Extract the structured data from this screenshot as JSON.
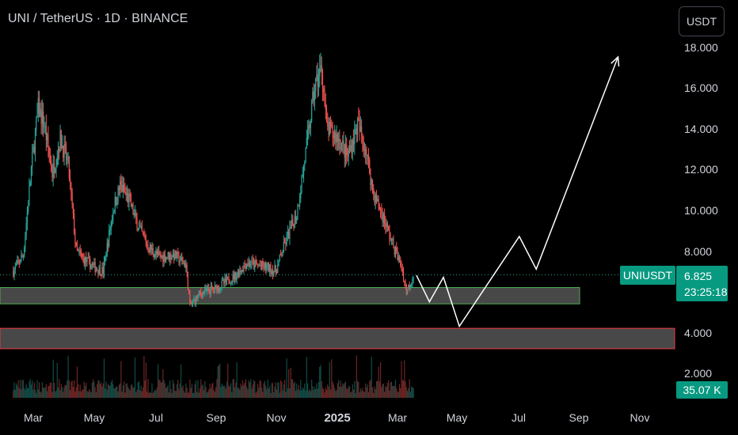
{
  "header": {
    "title": "UNI / TetherUS · 1D · BINANCE",
    "currency_button": "USDT"
  },
  "badges": {
    "symbol": "UNIUSDT",
    "last_price": "6.825",
    "countdown": "23:25:18",
    "volume": "35.07 K"
  },
  "colors": {
    "up": "#26a69a",
    "down": "#ef5350",
    "zone_fill": "#505050",
    "zone_green_border": "#4caf50",
    "zone_red_border": "#f23645",
    "projection": "#ffffff",
    "badge": "#089981"
  },
  "chart_data": {
    "type": "candlestick",
    "y_axis": {
      "ticks": [
        "18.000",
        "16.000",
        "14.000",
        "12.000",
        "10.000",
        "8.000",
        "4.000",
        "2.000"
      ],
      "range": [
        1.0,
        19.5
      ]
    },
    "x_axis": {
      "ticks": [
        "Mar",
        "May",
        "Jul",
        "Sep",
        "Nov",
        "2025",
        "Mar",
        "May",
        "Jul",
        "Sep",
        "Nov"
      ]
    },
    "last_price": 6.825,
    "price_path": [
      {
        "date": "2024-02-10",
        "price": 7.0
      },
      {
        "date": "2024-02-20",
        "price": 7.8
      },
      {
        "date": "2024-02-28",
        "price": 12.0
      },
      {
        "date": "2024-03-06",
        "price": 15.0
      },
      {
        "date": "2024-03-12",
        "price": 14.2
      },
      {
        "date": "2024-03-20",
        "price": 11.8
      },
      {
        "date": "2024-03-28",
        "price": 13.5
      },
      {
        "date": "2024-04-05",
        "price": 12.2
      },
      {
        "date": "2024-04-13",
        "price": 8.0
      },
      {
        "date": "2024-04-20",
        "price": 7.6
      },
      {
        "date": "2024-05-01",
        "price": 7.2
      },
      {
        "date": "2024-05-10",
        "price": 7.0
      },
      {
        "date": "2024-05-20",
        "price": 10.0
      },
      {
        "date": "2024-05-27",
        "price": 11.2
      },
      {
        "date": "2024-06-05",
        "price": 10.5
      },
      {
        "date": "2024-06-13",
        "price": 9.3
      },
      {
        "date": "2024-06-24",
        "price": 8.2
      },
      {
        "date": "2024-07-05",
        "price": 7.7
      },
      {
        "date": "2024-07-20",
        "price": 7.8
      },
      {
        "date": "2024-08-01",
        "price": 7.3
      },
      {
        "date": "2024-08-05",
        "price": 5.3
      },
      {
        "date": "2024-08-15",
        "price": 5.9
      },
      {
        "date": "2024-09-01",
        "price": 6.2
      },
      {
        "date": "2024-09-20",
        "price": 6.8
      },
      {
        "date": "2024-10-01",
        "price": 7.4
      },
      {
        "date": "2024-10-20",
        "price": 7.2
      },
      {
        "date": "2024-10-30",
        "price": 7.0
      },
      {
        "date": "2024-11-10",
        "price": 8.6
      },
      {
        "date": "2024-11-20",
        "price": 9.8
      },
      {
        "date": "2024-12-01",
        "price": 13.5
      },
      {
        "date": "2024-12-08",
        "price": 16.0
      },
      {
        "date": "2024-12-15",
        "price": 17.0
      },
      {
        "date": "2024-12-20",
        "price": 14.0
      },
      {
        "date": "2025-01-01",
        "price": 13.5
      },
      {
        "date": "2025-01-10",
        "price": 12.6
      },
      {
        "date": "2025-01-20",
        "price": 14.2
      },
      {
        "date": "2025-01-28",
        "price": 13.0
      },
      {
        "date": "2025-02-05",
        "price": 10.8
      },
      {
        "date": "2025-02-15",
        "price": 9.6
      },
      {
        "date": "2025-02-25",
        "price": 8.2
      },
      {
        "date": "2025-03-05",
        "price": 7.2
      },
      {
        "date": "2025-03-10",
        "price": 6.0
      },
      {
        "date": "2025-03-17",
        "price": 6.825
      }
    ],
    "support_zones": [
      {
        "low": 5.4,
        "high": 6.2,
        "border": "green"
      },
      {
        "low": 3.2,
        "high": 4.2,
        "border": "red"
      }
    ],
    "projection": [
      {
        "date": "2025-03-20",
        "price": 6.8
      },
      {
        "date": "2025-04-02",
        "price": 5.5
      },
      {
        "date": "2025-04-16",
        "price": 6.7
      },
      {
        "date": "2025-05-02",
        "price": 4.3
      },
      {
        "date": "2025-07-01",
        "price": 8.7
      },
      {
        "date": "2025-07-18",
        "price": 7.1
      },
      {
        "date": "2025-10-08",
        "price": 17.5
      }
    ]
  }
}
